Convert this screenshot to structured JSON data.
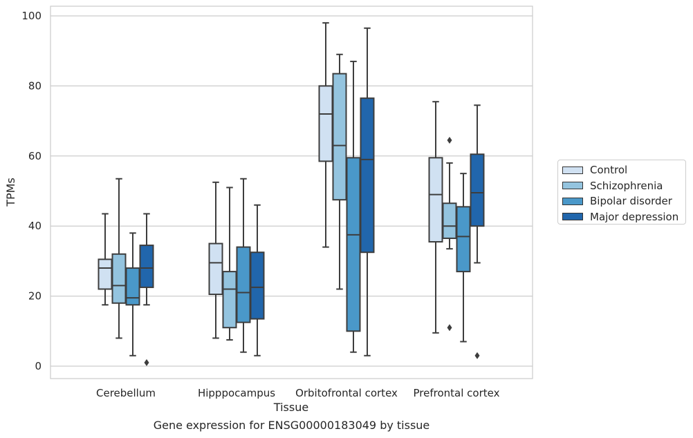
{
  "chart_data": {
    "type": "box",
    "title": "",
    "caption": "Gene expression for ENSG00000183049 by tissue",
    "xlabel": "Tissue",
    "ylabel": "TPMs",
    "ylim": [
      -3.5,
      103
    ],
    "yticks": [
      0,
      20,
      40,
      60,
      80,
      100
    ],
    "grid": true,
    "legend_position": "right",
    "categories": [
      "Cerebellum",
      "Hipppocampus",
      "Orbitofrontal cortex",
      "Prefrontal cortex"
    ],
    "series": [
      {
        "name": "Control",
        "color": "#d0e1f2",
        "boxes": [
          {
            "whisker_low": 17.5,
            "q1": 22,
            "median": 28,
            "q3": 30.5,
            "whisker_high": 43.5,
            "outliers": []
          },
          {
            "whisker_low": 8,
            "q1": 20.5,
            "median": 29.5,
            "q3": 35,
            "whisker_high": 52.5,
            "outliers": []
          },
          {
            "whisker_low": 34,
            "q1": 58.5,
            "median": 72,
            "q3": 80,
            "whisker_high": 98,
            "outliers": []
          },
          {
            "whisker_low": 9.5,
            "q1": 35.5,
            "median": 49,
            "q3": 59.5,
            "whisker_high": 75.5,
            "outliers": []
          }
        ]
      },
      {
        "name": "Schizophrenia",
        "color": "#94c4df",
        "boxes": [
          {
            "whisker_low": 8,
            "q1": 18,
            "median": 23,
            "q3": 32,
            "whisker_high": 53.5,
            "outliers": []
          },
          {
            "whisker_low": 7.5,
            "q1": 11,
            "median": 22,
            "q3": 27,
            "whisker_high": 51,
            "outliers": []
          },
          {
            "whisker_low": 22,
            "q1": 47.5,
            "median": 63,
            "q3": 83.5,
            "whisker_high": 89,
            "outliers": []
          },
          {
            "whisker_low": 33.5,
            "q1": 36.5,
            "median": 40,
            "q3": 46.5,
            "whisker_high": 58,
            "outliers": [
              11,
              64.5
            ]
          }
        ]
      },
      {
        "name": "Bipolar disorder",
        "color": "#4a98c9",
        "boxes": [
          {
            "whisker_low": 3,
            "q1": 17.5,
            "median": 19.5,
            "q3": 28,
            "whisker_high": 38,
            "outliers": []
          },
          {
            "whisker_low": 4,
            "q1": 12.5,
            "median": 21,
            "q3": 34,
            "whisker_high": 53.5,
            "outliers": []
          },
          {
            "whisker_low": 4,
            "q1": 10,
            "median": 37.5,
            "q3": 59.5,
            "whisker_high": 87,
            "outliers": []
          },
          {
            "whisker_low": 7,
            "q1": 27,
            "median": 37,
            "q3": 45.5,
            "whisker_high": 55,
            "outliers": []
          }
        ]
      },
      {
        "name": "Major depression",
        "color": "#2166ac",
        "boxes": [
          {
            "whisker_low": 17.5,
            "q1": 22.5,
            "median": 28,
            "q3": 34.5,
            "whisker_high": 43.5,
            "outliers": [
              1
            ]
          },
          {
            "whisker_low": 3,
            "q1": 13.5,
            "median": 22.5,
            "q3": 32.5,
            "whisker_high": 46,
            "outliers": []
          },
          {
            "whisker_low": 3,
            "q1": 32.5,
            "median": 59,
            "q3": 76.5,
            "whisker_high": 96.5,
            "outliers": []
          },
          {
            "whisker_low": 29.5,
            "q1": 40,
            "median": 49.5,
            "q3": 60.5,
            "whisker_high": 74.5,
            "outliers": [
              3
            ]
          }
        ]
      }
    ]
  }
}
